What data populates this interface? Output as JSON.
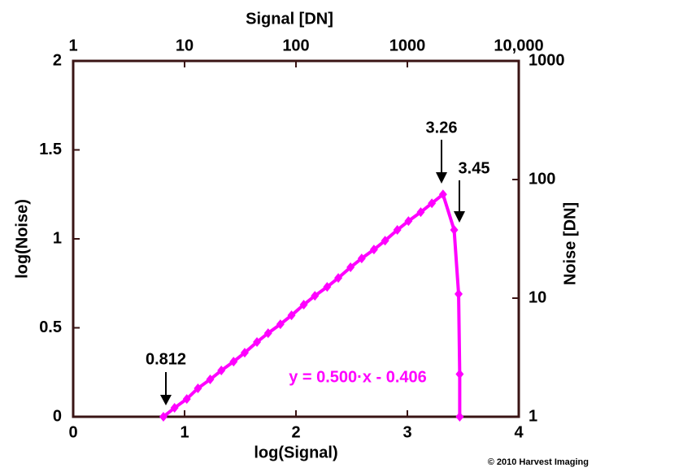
{
  "chart_data": {
    "type": "line",
    "title": "Signal [DN]",
    "x_label": "log(Signal)",
    "y_label": "log(Noise)",
    "y2_label": "Noise [DN]",
    "xlim": [
      0,
      4
    ],
    "xticks": [
      0,
      1,
      2,
      3,
      4
    ],
    "ylim": [
      0,
      2
    ],
    "yticks": [
      0,
      0.5,
      1,
      1.5,
      2
    ],
    "x2lim": [
      1,
      10000
    ],
    "x2ticks": [
      1,
      10,
      100,
      1000,
      {
        "value": 10000,
        "label": "10,000"
      }
    ],
    "x2_log": true,
    "y2lim": [
      1,
      1000
    ],
    "y2ticks": [
      1,
      10,
      100,
      1000
    ],
    "y2_log": true,
    "series": [
      {
        "name": "log(Noise)",
        "color": "#ff00ff",
        "x": [
          0.81,
          0.91,
          1.02,
          1.12,
          1.23,
          1.33,
          1.44,
          1.54,
          1.65,
          1.75,
          1.86,
          1.96,
          2.07,
          2.17,
          2.28,
          2.38,
          2.49,
          2.59,
          2.7,
          2.8,
          2.91,
          3.01,
          3.12,
          3.22,
          3.32,
          3.42,
          3.46,
          3.47,
          3.47
        ],
        "values": [
          0.0,
          0.05,
          0.1,
          0.16,
          0.21,
          0.26,
          0.31,
          0.36,
          0.42,
          0.47,
          0.52,
          0.57,
          0.63,
          0.68,
          0.73,
          0.78,
          0.84,
          0.89,
          0.94,
          0.99,
          1.05,
          1.1,
          1.15,
          1.2,
          1.25,
          1.05,
          0.69,
          0.24,
          0.0
        ]
      }
    ],
    "annotations": [
      "0.812",
      "3.26",
      "3.45",
      "y = 0.500·x - 0.406"
    ],
    "footer": "© 2010 Harvest Imaging"
  }
}
